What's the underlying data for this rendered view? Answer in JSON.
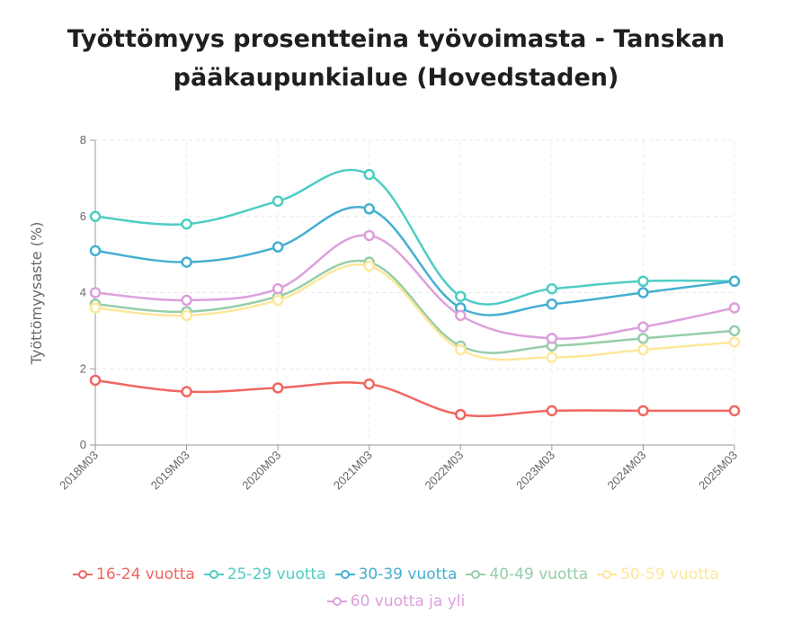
{
  "title_line1": "Työttömyys prosentteina työvoimasta - Tanskan",
  "title_line2": "pääkaupunkialue (Hovedstaden)",
  "chart_data": {
    "type": "line",
    "title": "Työttömyys prosentteina työvoimasta - Tanskan pääkaupunkialue (Hovedstaden)",
    "xlabel": "",
    "ylabel": "Työttömyysaste (%)",
    "ylim": [
      0,
      8
    ],
    "yticks": [
      0,
      2,
      4,
      6,
      8
    ],
    "grid": true,
    "legend_position": "bottom",
    "categories": [
      "2018M03",
      "2019M03",
      "2020M03",
      "2021M03",
      "2022M03",
      "2023M03",
      "2024M03",
      "2025M03"
    ],
    "series": [
      {
        "name": "16-24 vuotta",
        "color": "#f0665f",
        "values": [
          1.7,
          1.4,
          1.5,
          1.6,
          0.8,
          0.9,
          0.9,
          0.9
        ]
      },
      {
        "name": "25-29 vuotta",
        "color": "#4ecdc4",
        "values": [
          6.0,
          5.8,
          6.4,
          7.1,
          3.9,
          4.1,
          4.3,
          4.3
        ]
      },
      {
        "name": "30-39 vuotta",
        "color": "#45afd1",
        "values": [
          5.1,
          4.8,
          5.2,
          6.2,
          3.6,
          3.7,
          4.0,
          4.3
        ]
      },
      {
        "name": "40-49 vuotta",
        "color": "#96cea8",
        "values": [
          3.7,
          3.5,
          3.9,
          4.8,
          2.6,
          2.6,
          2.8,
          3.0
        ]
      },
      {
        "name": "50-59 vuotta",
        "color": "#ffe79a",
        "values": [
          3.6,
          3.4,
          3.8,
          4.7,
          2.5,
          2.3,
          2.5,
          2.7
        ]
      },
      {
        "name": "60 vuotta ja yli",
        "color": "#dda0dd",
        "values": [
          4.0,
          3.8,
          4.1,
          5.5,
          3.4,
          2.8,
          3.1,
          3.6
        ]
      }
    ]
  }
}
